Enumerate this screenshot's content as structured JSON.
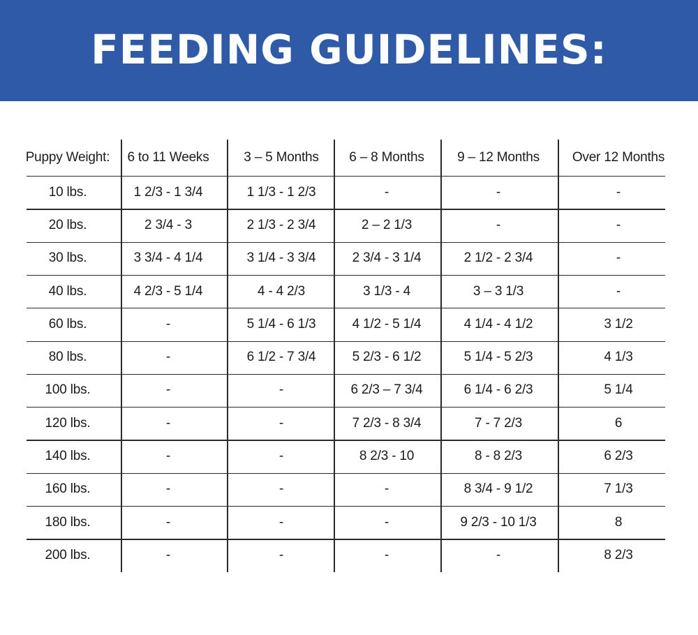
{
  "title": "FEEDING GUIDELINES:",
  "colors": {
    "banner": "#2f5aa8",
    "banner_text": "#ffffff",
    "text": "#1b1b1b",
    "rules": "#2a2a2a"
  },
  "table": {
    "headers": [
      "Puppy Weight:",
      "6 to 11 Weeks",
      "3 – 5 Months",
      "6 – 8 Months",
      "9 – 12 Months",
      "Over 12 Months"
    ],
    "rows": [
      [
        "10 lbs.",
        "1 2/3 - 1 3/4",
        "1 1/3 -  1 2/3",
        "-",
        "-",
        "-"
      ],
      [
        "20 lbs.",
        "2 3/4 - 3",
        "2 1/3 - 2 3/4",
        "2 – 2 1/3",
        "-",
        "-"
      ],
      [
        "30 lbs.",
        "3 3/4 - 4 1/4",
        "3 1/4 - 3 3/4",
        "2 3/4 - 3 1/4",
        "2 1/2 - 2 3/4",
        "-"
      ],
      [
        "40 lbs.",
        "4 2/3 - 5 1/4",
        "4  - 4 2/3",
        "3 1/3 - 4",
        "3 – 3 1/3",
        "-"
      ],
      [
        "60 lbs.",
        "-",
        "5 1/4 - 6 1/3",
        "4 1/2 - 5 1/4",
        "4 1/4 - 4 1/2",
        "3 1/2"
      ],
      [
        "80 lbs.",
        "-",
        "6 1/2 - 7 3/4",
        "5 2/3 - 6 1/2",
        "5 1/4 - 5 2/3",
        "4 1/3"
      ],
      [
        "100 lbs.",
        "-",
        "-",
        "6 2/3 – 7 3/4",
        "6 1/4 - 6 2/3",
        "5 1/4"
      ],
      [
        "120 lbs.",
        "-",
        "-",
        "7 2/3 - 8 3/4",
        "7 - 7 2/3",
        "6"
      ],
      [
        "140 lbs.",
        "-",
        "-",
        "8 2/3 - 10",
        "8 - 8 2/3",
        "6 2/3"
      ],
      [
        "160 lbs.",
        "-",
        "-",
        "-",
        "8 3/4 - 9 1/2",
        "7 1/3"
      ],
      [
        "180 lbs.",
        "-",
        "-",
        "-",
        "9 2/3 - 10 1/3",
        "8"
      ],
      [
        "200 lbs.",
        "-",
        "-",
        "-",
        "-",
        "8 2/3"
      ]
    ]
  }
}
